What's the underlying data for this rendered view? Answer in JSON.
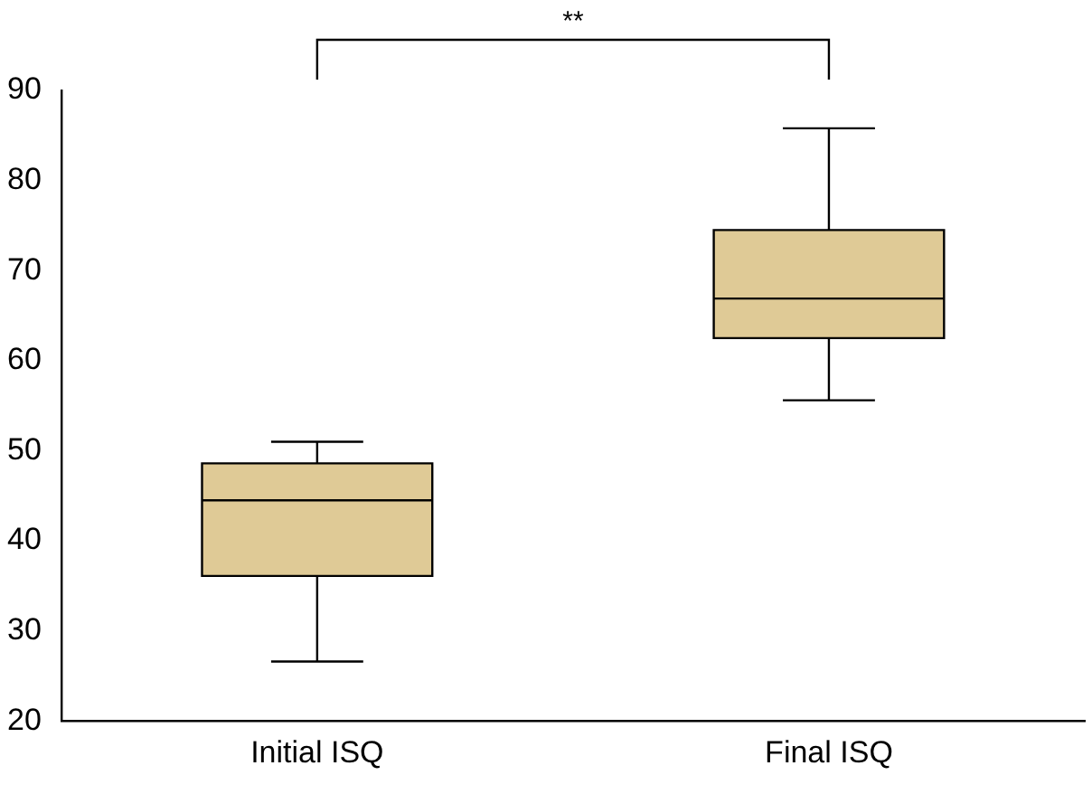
{
  "chart_data": {
    "type": "box",
    "categories": [
      "Initial ISQ",
      "Final ISQ"
    ],
    "color": "#dfca96",
    "boxes": [
      {
        "low": 26.6,
        "q1": 36.1,
        "median": 44.5,
        "q3": 48.6,
        "high": 51
      },
      {
        "low": 55.6,
        "q1": 62.5,
        "median": 66.9,
        "q3": 74.5,
        "high": 85.8
      }
    ],
    "ylim": [
      20,
      90
    ],
    "yticks": [
      20,
      30,
      40,
      50,
      60,
      70,
      80,
      90
    ],
    "grid": false,
    "annotations": [
      "**"
    ]
  }
}
